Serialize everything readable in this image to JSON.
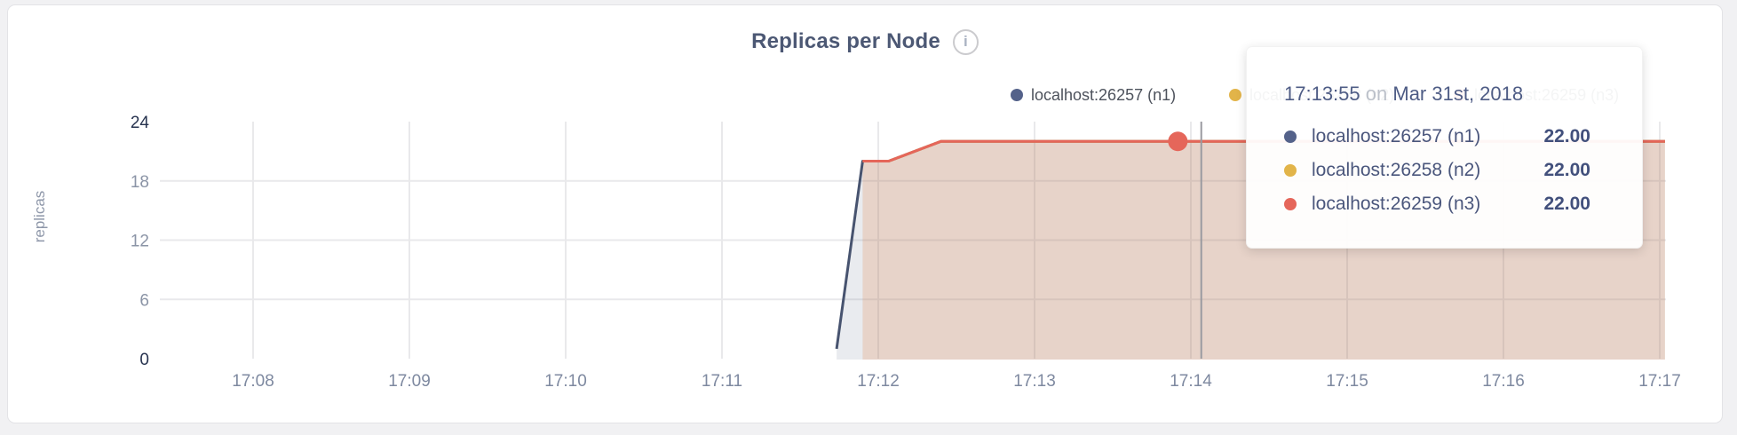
{
  "header": {
    "title": "Replicas per Node",
    "info_icon_glyph": "i"
  },
  "legend": {
    "items": [
      {
        "label": "localhost:26257 (n1)",
        "color": "#54628a"
      },
      {
        "label": "localhost:26258 (n2)",
        "color": "#e2b449"
      },
      {
        "label": "localhost:26259 (n3)",
        "color": "#e5665a"
      }
    ]
  },
  "y_axis": {
    "label": "replicas"
  },
  "tooltip": {
    "time": "17:13:55",
    "connector": "on",
    "date": "Mar 31st, 2018",
    "rows": [
      {
        "label": "localhost:26257 (n1)",
        "value": "22.00",
        "color": "#54628a"
      },
      {
        "label": "localhost:26258 (n2)",
        "value": "22.00",
        "color": "#e2b449"
      },
      {
        "label": "localhost:26259 (n3)",
        "value": "22.00",
        "color": "#e5665a"
      }
    ]
  },
  "chart_data": {
    "type": "area",
    "title": "Replicas per Node",
    "xlabel": "",
    "ylabel": "replicas",
    "ylim": [
      0,
      24
    ],
    "y_ticks": [
      0,
      6,
      12,
      18,
      24
    ],
    "x_ticks": [
      "17:08",
      "17:09",
      "17:10",
      "17:11",
      "17:12",
      "17:13",
      "17:14",
      "17:15",
      "17:16",
      "17:17"
    ],
    "grid": true,
    "legend_position": "top-right",
    "colors": {
      "grid": "#e9e9eb",
      "crosshair": "#9a9aa0",
      "tick_dark": "#27334f",
      "tick_gray": "#8b94a6",
      "x_tick": "#7e89a0"
    },
    "series": [
      {
        "name": "localhost:26257 (n1)",
        "color": "#47536f",
        "fill": "rgba(84,98,132,0.13)",
        "points": [
          [
            "17:11:44",
            1
          ],
          [
            "17:11:54",
            20
          ],
          [
            "17:12:04",
            20
          ],
          [
            "17:12:24",
            22
          ],
          [
            "17:17:02",
            22
          ]
        ]
      },
      {
        "name": "localhost:26258 (n2)",
        "color": "#e2b449",
        "fill": "rgba(224,177,69,0.10)",
        "points": [
          [
            "17:11:54",
            20
          ],
          [
            "17:12:04",
            20
          ],
          [
            "17:12:24",
            22
          ],
          [
            "17:17:02",
            22
          ]
        ]
      },
      {
        "name": "localhost:26259 (n3)",
        "color": "#e5665a",
        "fill": "rgba(226,108,88,0.14)",
        "points": [
          [
            "17:11:54",
            20
          ],
          [
            "17:12:04",
            20
          ],
          [
            "17:12:24",
            22
          ],
          [
            "17:17:02",
            22
          ]
        ]
      }
    ],
    "hover": {
      "series": "localhost:26259 (n3)",
      "time": "17:13:55",
      "value": 22,
      "crosshair_time": "17:14:04"
    }
  }
}
